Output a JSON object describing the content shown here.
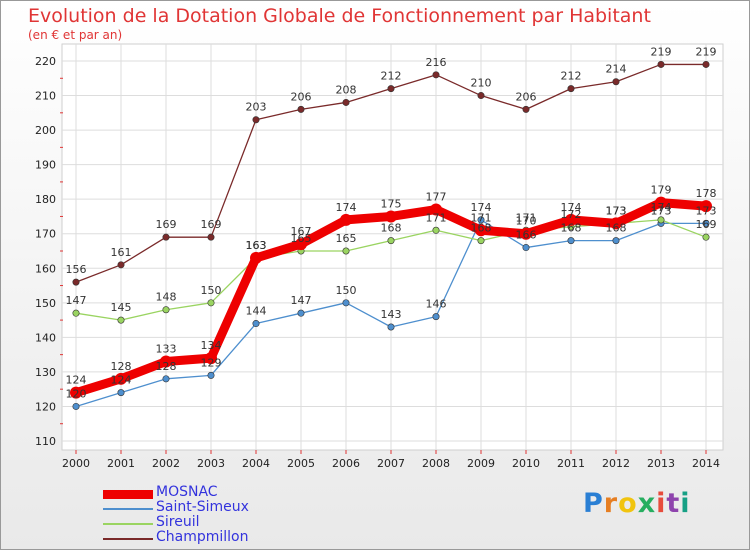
{
  "title": "Evolution de la Dotation Globale de Fonctionnement par Habitant",
  "subtitle": "(en € et par an)",
  "brand": {
    "letters": [
      "P",
      "r",
      "o",
      "x",
      "i",
      "t",
      "i"
    ],
    "colors": [
      "#2a7fd4",
      "#e67e22",
      "#f1c40f",
      "#27ae60",
      "#e74c3c",
      "#8e44ad",
      "#16a085"
    ]
  },
  "chart_data": {
    "type": "line",
    "title": "Evolution de la Dotation Globale de Fonctionnement par Habitant",
    "subtitle": "(en € et par an)",
    "x": [
      2000,
      2001,
      2002,
      2003,
      2004,
      2005,
      2006,
      2007,
      2008,
      2009,
      2010,
      2011,
      2012,
      2013,
      2014
    ],
    "ylim": [
      110,
      220
    ],
    "yticks": [
      110,
      120,
      130,
      140,
      150,
      160,
      170,
      180,
      190,
      200,
      210,
      220
    ],
    "grid": true,
    "legend": "bottom-left",
    "series": [
      {
        "name": "MOSNAC",
        "color": "#ee0000",
        "values": [
          124,
          128,
          133,
          134,
          163,
          167,
          174,
          175,
          177,
          171,
          170,
          174,
          173,
          179,
          178
        ]
      },
      {
        "name": "Saint-Simeux",
        "color": "#4e8fce",
        "values": [
          120,
          124,
          128,
          129,
          144,
          147,
          150,
          143,
          146,
          174,
          166,
          168,
          168,
          173,
          173
        ]
      },
      {
        "name": "Sireuil",
        "color": "#9ad461",
        "values": [
          147,
          145,
          148,
          150,
          163,
          165,
          165,
          168,
          171,
          168,
          171,
          172,
          173,
          174,
          169
        ]
      },
      {
        "name": "Champmillon",
        "color": "#7a2a2a",
        "values": [
          156,
          161,
          169,
          169,
          203,
          206,
          208,
          212,
          216,
          210,
          206,
          212,
          214,
          219,
          219
        ]
      }
    ]
  }
}
